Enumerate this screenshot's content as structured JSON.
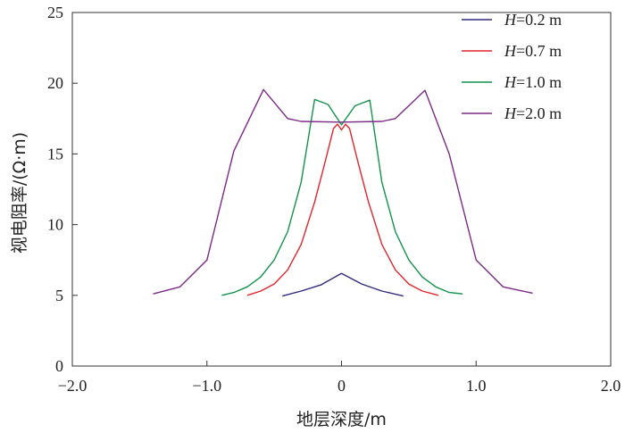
{
  "chart_data": {
    "type": "line",
    "xlabel": "地层深度/m",
    "ylabel": "视电阻率/(Ω·m)",
    "xlim": [
      -2.0,
      2.0
    ],
    "ylim": [
      0,
      25
    ],
    "x_ticks": [
      "−2.0",
      "−1.0",
      "0",
      "1.0",
      "2.0"
    ],
    "x_tick_values": [
      -2,
      -1,
      0,
      1,
      2
    ],
    "y_ticks": [
      "0",
      "5",
      "10",
      "15",
      "20",
      "25"
    ],
    "y_tick_values": [
      0,
      5,
      10,
      15,
      20,
      25
    ],
    "legend_position": "top-right",
    "series": [
      {
        "name": "H=0.2 m",
        "var": "H",
        "rest": "=0.2 m",
        "color": "#2e2a7a",
        "points": [
          [
            -0.44,
            4.95
          ],
          [
            -0.3,
            5.3
          ],
          [
            -0.15,
            5.75
          ],
          [
            0,
            6.55
          ],
          [
            0.15,
            5.8
          ],
          [
            0.3,
            5.3
          ],
          [
            0.46,
            4.95
          ]
        ]
      },
      {
        "name": "H=0.7 m",
        "var": "H",
        "rest": "=0.7 m",
        "color": "#e0252b",
        "points": [
          [
            -0.7,
            5.0
          ],
          [
            -0.6,
            5.3
          ],
          [
            -0.5,
            5.8
          ],
          [
            -0.4,
            6.8
          ],
          [
            -0.3,
            8.6
          ],
          [
            -0.2,
            11.6
          ],
          [
            -0.12,
            14.5
          ],
          [
            -0.06,
            16.8
          ],
          [
            -0.03,
            17.1
          ],
          [
            0,
            16.7
          ],
          [
            0.03,
            17.1
          ],
          [
            0.06,
            16.8
          ],
          [
            0.12,
            14.5
          ],
          [
            0.2,
            11.6
          ],
          [
            0.3,
            8.6
          ],
          [
            0.4,
            6.8
          ],
          [
            0.5,
            5.8
          ],
          [
            0.6,
            5.3
          ],
          [
            0.72,
            5.0
          ]
        ]
      },
      {
        "name": "H=1.0 m",
        "var": "H",
        "rest": "=1.0 m",
        "color": "#12924b",
        "points": [
          [
            -0.89,
            5.0
          ],
          [
            -0.8,
            5.2
          ],
          [
            -0.7,
            5.6
          ],
          [
            -0.6,
            6.3
          ],
          [
            -0.5,
            7.5
          ],
          [
            -0.4,
            9.5
          ],
          [
            -0.3,
            13.0
          ],
          [
            -0.2,
            18.85
          ],
          [
            -0.1,
            18.5
          ],
          [
            0,
            17.05
          ],
          [
            0.1,
            18.4
          ],
          [
            0.21,
            18.8
          ],
          [
            0.3,
            13.0
          ],
          [
            0.4,
            9.5
          ],
          [
            0.5,
            7.5
          ],
          [
            0.6,
            6.3
          ],
          [
            0.7,
            5.6
          ],
          [
            0.8,
            5.2
          ],
          [
            0.9,
            5.1
          ]
        ]
      },
      {
        "name": "H=2.0 m",
        "var": "H",
        "rest": "=2.0 m",
        "color": "#7b2a86",
        "points": [
          [
            -1.4,
            5.1
          ],
          [
            -1.2,
            5.6
          ],
          [
            -1.0,
            7.5
          ],
          [
            -0.8,
            15.2
          ],
          [
            -0.58,
            19.55
          ],
          [
            -0.4,
            17.5
          ],
          [
            -0.3,
            17.3
          ],
          [
            0,
            17.25
          ],
          [
            0.3,
            17.3
          ],
          [
            0.4,
            17.5
          ],
          [
            0.62,
            19.5
          ],
          [
            0.8,
            15.0
          ],
          [
            1.0,
            7.5
          ],
          [
            1.2,
            5.6
          ],
          [
            1.42,
            5.15
          ]
        ]
      }
    ]
  }
}
